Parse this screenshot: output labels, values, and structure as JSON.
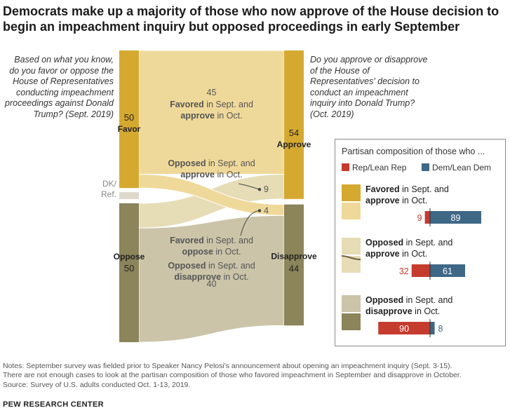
{
  "title": "Democrats make up a majority of those who now approve of the House decision to begin an impeachment inquiry but opposed proceedings in early September",
  "left_question": "Based on what you know, do you favor or oppose the House of Representatives conducting impeachment proceedings against Donald Trump? (Sept. 2019)",
  "right_question": "Do you approve or disapprove of the House of Representatives' decision to conduct an impeachment inquiry into Donald Trump? (Oct. 2019)",
  "colors": {
    "favor": "#d5a930",
    "oppose": "#8c845a",
    "flow_favor_approve": "#efd99a",
    "flow_oppose_approve": "#e6dcb6",
    "flow_oppose_disapprove": "#cbc4a9",
    "flow_dk": "#dcd8cc",
    "rep": "#c53b2e",
    "dem": "#3f6786"
  },
  "chart_data": [
    {
      "type": "sankey",
      "left_nodes": [
        {
          "key": "favor",
          "label": "Favor",
          "value": 50
        },
        {
          "key": "dk",
          "label": "DK/ Ref.",
          "value": null
        },
        {
          "key": "oppose",
          "label": "Oppose",
          "value": 50
        }
      ],
      "right_nodes": [
        {
          "key": "approve",
          "label": "Approve",
          "value": 54
        },
        {
          "key": "disapprove",
          "label": "Disapprove",
          "value": 44
        }
      ],
      "flows": [
        {
          "from": "Favor",
          "to": "Approve",
          "value": 45,
          "label_bold": "Favored",
          "label_mid": " in Sept. and",
          "label_bold2": "approve",
          "label_end": " in Oct."
        },
        {
          "from": "Oppose",
          "to": "Approve",
          "value": 9,
          "label_bold": "Opposed",
          "label_mid": " in Sept. and",
          "label_bold2": "approve",
          "label_end": " in Oct."
        },
        {
          "from": "Favor",
          "to": "Disapprove",
          "value": 4,
          "label_bold": "Favored",
          "label_mid": " in Sept. and",
          "label_bold2": "oppose",
          "label_end": " in Oct."
        },
        {
          "from": "Oppose",
          "to": "Disapprove",
          "value": 40,
          "label_bold": "Opposed",
          "label_mid": " in Sept. and",
          "label_bold2": "disapprove",
          "label_end": " in Oct."
        }
      ]
    },
    {
      "type": "bar",
      "title": "Partisan composition of those who ...",
      "legend": [
        "Rep/Lean Rep",
        "Dem/Lean Dem"
      ],
      "groups": [
        {
          "line1_bold": "Favored",
          "line1": " in Sept. and",
          "line2_bold": "approve",
          "line2": " in Oct.",
          "rep": 9,
          "dem": 89
        },
        {
          "line1_bold": "Opposed",
          "line1": " in Sept. and",
          "line2_bold": "approve",
          "line2": " in Oct.",
          "rep": 32,
          "dem": 61
        },
        {
          "line1_bold": "Opposed",
          "line1": " in Sept. and",
          "line2_bold": "disapprove",
          "line2": " in Oct.",
          "rep": 90,
          "dem": 8
        }
      ]
    }
  ],
  "notes": [
    "Notes: September survey was fielded prior to Speaker Nancy Pelosi's announcement about opening an impeachment inquiry (Sept. 3-15).",
    "There are not enough cases to look at the partisan composition of those who favored impeachment in September and disapprove in October.",
    "Source: Survey of U.S. adults conducted Oct. 1-13, 2019."
  ],
  "source_brand": "PEW RESEARCH CENTER"
}
